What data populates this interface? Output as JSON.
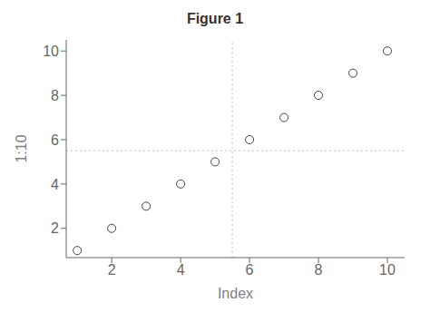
{
  "chart_data": {
    "type": "scatter",
    "title": "Figure 1",
    "xlabel": "Index",
    "ylabel": "1:10",
    "x": [
      1,
      2,
      3,
      4,
      5,
      6,
      7,
      8,
      9,
      10
    ],
    "values": [
      1,
      2,
      3,
      4,
      5,
      6,
      7,
      8,
      9,
      10
    ],
    "xlim": [
      0.68,
      10.5
    ],
    "ylim": [
      0.68,
      10.5
    ],
    "xticks": [
      2,
      4,
      6,
      8,
      10
    ],
    "yticks": [
      2,
      4,
      6,
      8,
      10
    ],
    "grid_x": [
      5.5
    ],
    "grid_y": [
      5.5
    ],
    "marker": "circle",
    "color": "#444444"
  }
}
